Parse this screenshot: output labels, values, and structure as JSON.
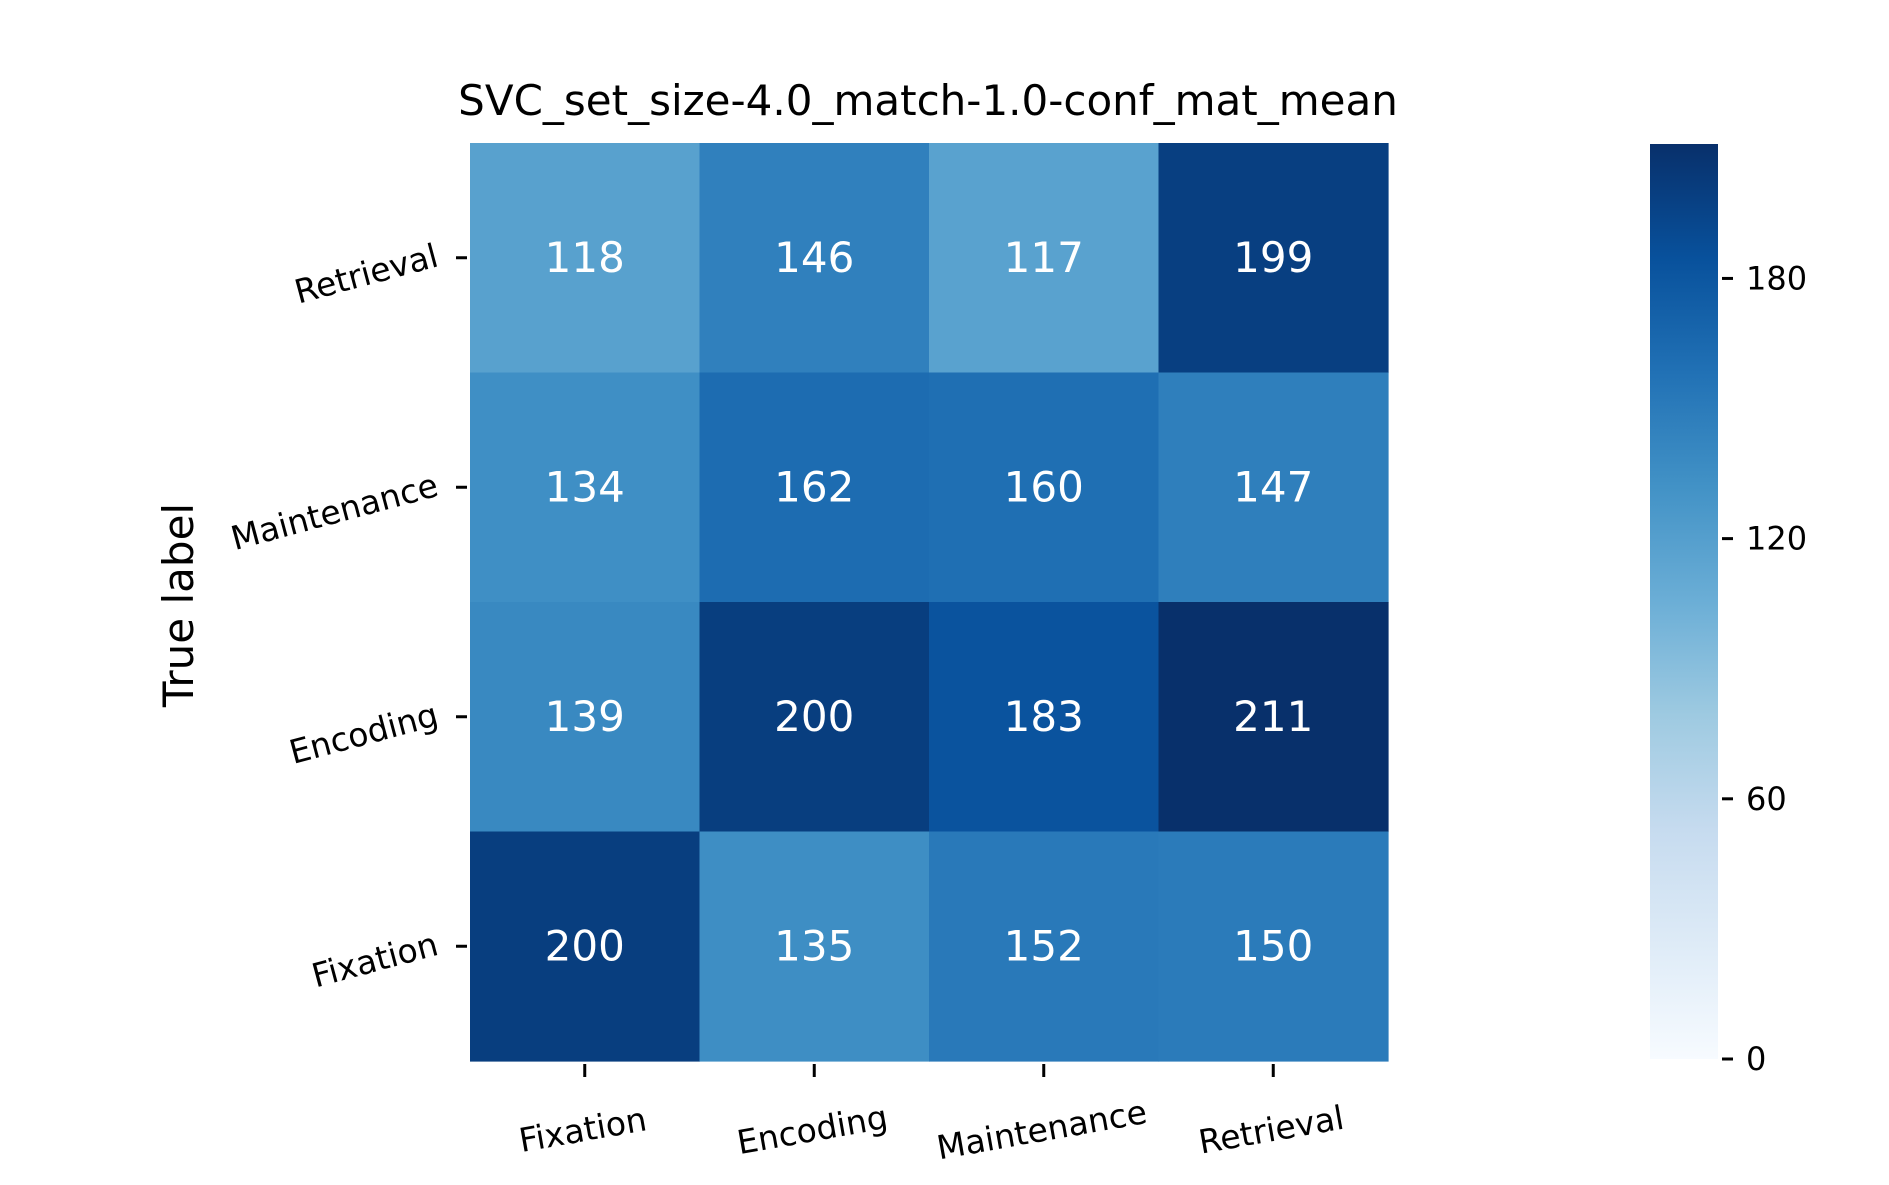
{
  "chart_data": {
    "type": "heatmap",
    "title": "SVC_set_size-4.0_match-1.0-conf_mat_mean",
    "ylabel": "True label",
    "xlabel": "",
    "x_categories": [
      "Fixation",
      "Encoding",
      "Maintenance",
      "Retrieval"
    ],
    "y_categories_top_to_bottom": [
      "Retrieval",
      "Maintenance",
      "Encoding",
      "Fixation"
    ],
    "matrix_rows_top_to_bottom": [
      [
        118,
        146,
        117,
        199
      ],
      [
        134,
        162,
        160,
        147
      ],
      [
        139,
        200,
        183,
        211
      ],
      [
        200,
        135,
        152,
        150
      ]
    ],
    "color_range": [
      0,
      211
    ],
    "colormap": "Blues",
    "colorbar_ticks": [
      0,
      60,
      120,
      180
    ],
    "colorbar_tick_labels": [
      "0",
      "60",
      "120",
      "180"
    ],
    "colors": {
      "text_dark": "#262626",
      "text_light": "#ffffff",
      "axis": "#000000"
    }
  }
}
